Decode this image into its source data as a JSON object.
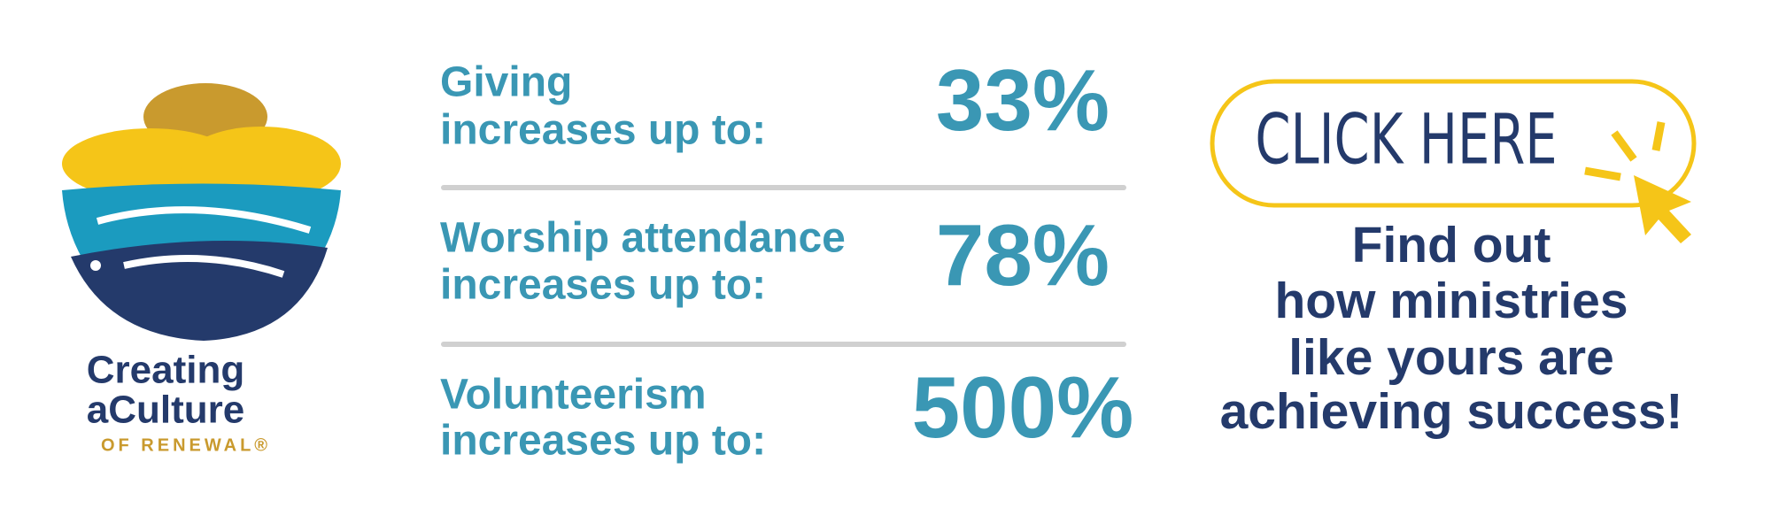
{
  "logo": {
    "lines": [
      "Creating",
      "aCulture",
      "OF RENEWAL®"
    ]
  },
  "stats": [
    {
      "label": [
        "Giving",
        "increases up to:"
      ],
      "value": "33%"
    },
    {
      "label": [
        "Worship attendance",
        "increases up to:"
      ],
      "value": "78%"
    },
    {
      "label": [
        "Volunteerism",
        "increases up to:"
      ],
      "value": "500%"
    }
  ],
  "cta": {
    "button": "CLICK HERE",
    "lines": [
      "Find out",
      "how ministries",
      "like yours are",
      "achieving success!"
    ]
  }
}
